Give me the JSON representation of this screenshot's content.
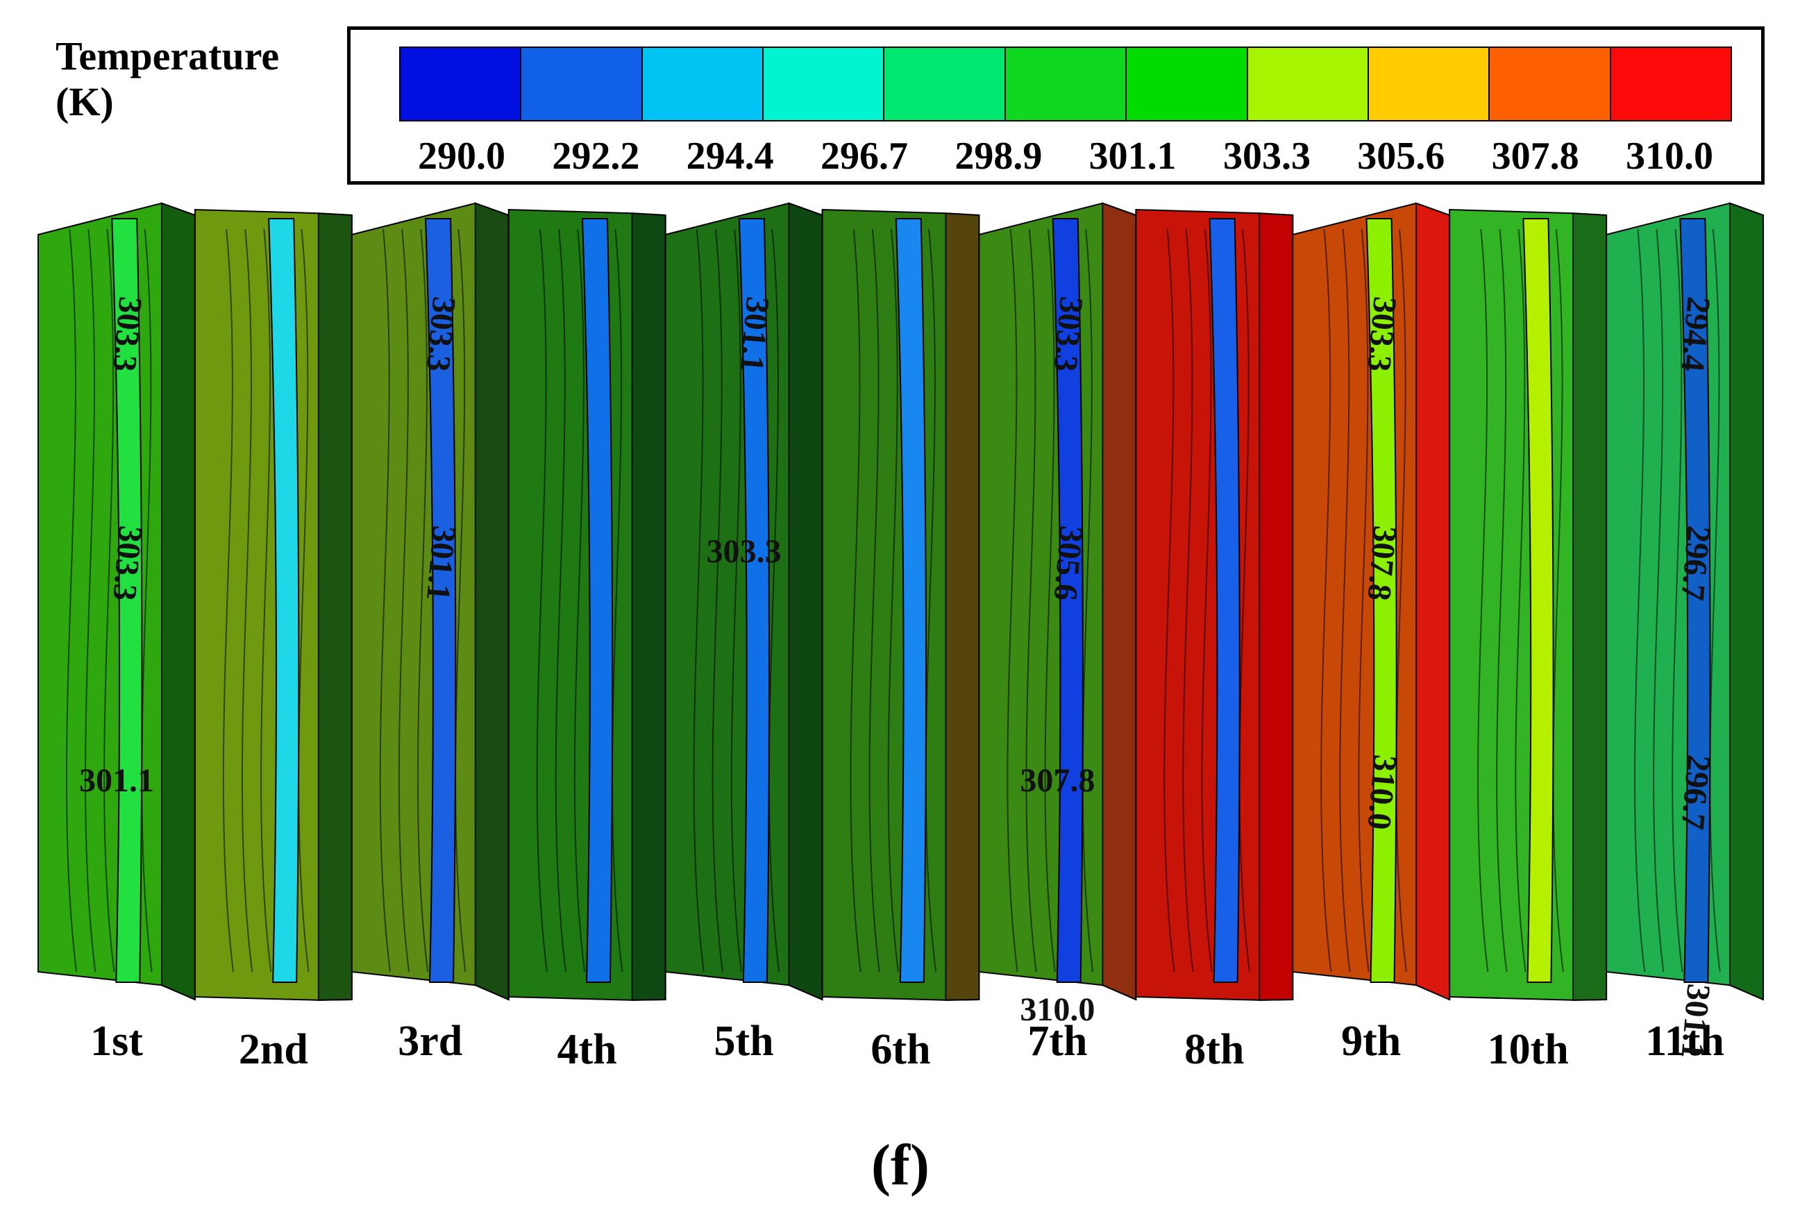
{
  "legend": {
    "title_line1": "Temperature",
    "title_line2": "(K)",
    "colors": [
      "#0010e0",
      "#1060e8",
      "#00c4f4",
      "#00f4d0",
      "#00e870",
      "#10d820",
      "#00dc00",
      "#a8f400",
      "#ffcc00",
      "#ff6000",
      "#ff0a0a"
    ],
    "ticks": [
      "290.0",
      "292.2",
      "294.4",
      "296.7",
      "298.9",
      "301.1",
      "303.3",
      "305.6",
      "307.8",
      "310.0"
    ]
  },
  "fins": [
    {
      "label": "1st",
      "base": "#2ea80e",
      "stripe": "#22e040",
      "shadow": "#0f5010"
    },
    {
      "label": "2nd",
      "base": "#6f9a10",
      "stripe": "#1ed8e8",
      "shadow": "#0d4a12"
    },
    {
      "label": "3rd",
      "base": "#5c8c14",
      "stripe": "#1a60e0",
      "shadow": "#0d4212"
    },
    {
      "label": "4th",
      "base": "#1f7a14",
      "stripe": "#1070e8",
      "shadow": "#0c4012"
    },
    {
      "label": "5th",
      "base": "#1e7014",
      "stripe": "#1070e8",
      "shadow": "#0c4012"
    },
    {
      "label": "6th",
      "base": "#2f7e14",
      "stripe": "#1888f0",
      "shadow": "#5c3a0a"
    },
    {
      "label": "7th",
      "base": "#3a8a14",
      "stripe": "#1040e0",
      "shadow": "#a02010"
    },
    {
      "label": "8th",
      "base": "#c81408",
      "stripe": "#1860e8",
      "shadow": "#c00000"
    },
    {
      "label": "9th",
      "base": "#c84808",
      "stripe": "#8cf000",
      "shadow": "#e01010"
    },
    {
      "label": "10th",
      "base": "#32b424",
      "stripe": "#b4f000",
      "shadow": "#186018"
    },
    {
      "label": "11th",
      "base": "#20b050",
      "stripe": "#1060c8",
      "shadow": "#106010"
    }
  ],
  "contour_labels": [
    {
      "text": "303.3",
      "fin": "1st",
      "rotated": true
    },
    {
      "text": "303.3",
      "fin": "1st",
      "rotated": true
    },
    {
      "text": "301.1",
      "fin": "1st",
      "rotated": false
    },
    {
      "text": "303.3",
      "fin": "3rd",
      "rotated": true
    },
    {
      "text": "301.1",
      "fin": "3rd",
      "rotated": true
    },
    {
      "text": "301.1",
      "fin": "5th",
      "rotated": true
    },
    {
      "text": "303.3",
      "fin": "5th",
      "rotated": false
    },
    {
      "text": "303.3",
      "fin": "7th",
      "rotated": true
    },
    {
      "text": "305.6",
      "fin": "7th",
      "rotated": true
    },
    {
      "text": "307.8",
      "fin": "7th",
      "rotated": false
    },
    {
      "text": "310.0",
      "fin": "7th",
      "rotated": false
    },
    {
      "text": "303.3",
      "fin": "9th",
      "rotated": true
    },
    {
      "text": "307.8",
      "fin": "9th",
      "rotated": true
    },
    {
      "text": "310.0",
      "fin": "9th",
      "rotated": true
    },
    {
      "text": "294.4",
      "fin": "11th",
      "rotated": true
    },
    {
      "text": "296.7",
      "fin": "11th",
      "rotated": true
    },
    {
      "text": "296.7",
      "fin": "11th",
      "rotated": true
    },
    {
      "text": "301.1",
      "fin": "11th",
      "rotated": true
    }
  ],
  "panel_label": "(f)"
}
